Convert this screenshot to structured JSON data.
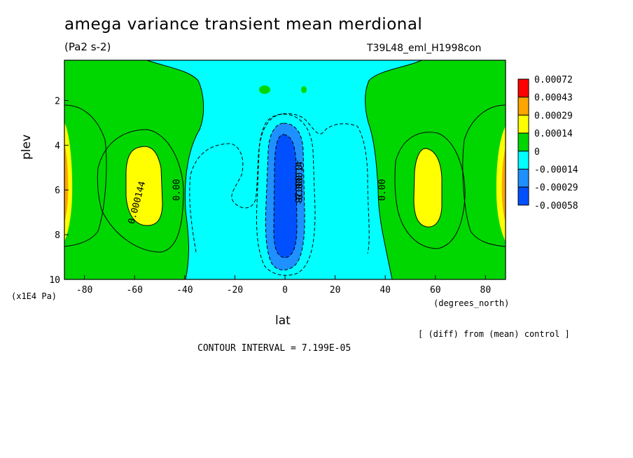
{
  "chart_data": {
    "type": "contour",
    "title": "amega variance transient mean merdional",
    "units": "(Pa2 s-2)",
    "run_label": "T39L48_eml_H1998con",
    "xlabel": "lat",
    "x_units": "(degrees_north)",
    "ylabel": "plev",
    "y_units": "(x1E4 Pa)",
    "xlim": [
      -88,
      88
    ],
    "ylim": [
      10,
      0.2
    ],
    "x_ticks": [
      -80,
      -60,
      -40,
      -20,
      0,
      20,
      40,
      60,
      80
    ],
    "x_tick_labels": [
      "-80",
      "-60",
      "-40",
      "-20",
      "0",
      "20",
      "40",
      "60",
      "80"
    ],
    "y_ticks": [
      2,
      4,
      6,
      8,
      10
    ],
    "y_tick_labels": [
      "2",
      "4",
      "6",
      "8",
      "10"
    ],
    "contour_interval_text": "CONTOUR INTERVAL = 7.199E-05",
    "diff_note": "[ (diff) from (mean) control ]",
    "contour_labels": [
      {
        "text": "0.000144",
        "lat": -58,
        "plev": 6.6,
        "angle": -75
      },
      {
        "text": "0.00",
        "lat": -42,
        "plev": 6.0,
        "angle": -90
      },
      {
        "text": "0.00",
        "lat": 40,
        "plev": 6.0,
        "angle": -90
      },
      {
        "text": "-0.00014",
        "lat": 7,
        "plev": 5.7,
        "angle": -90
      },
      {
        "text": "-0.00028",
        "lat": 4,
        "plev": 5.6,
        "angle": 90
      }
    ],
    "colorbar": {
      "labels": [
        "0.00072",
        "0.00043",
        "0.00029",
        "0.00014",
        "0",
        "-0.00014",
        "-0.00029",
        "-0.00058"
      ],
      "colors": [
        "#ff0000",
        "#ffa500",
        "#ffff00",
        "#00d700",
        "#00ffff",
        "#1e90ff",
        "#0050ff"
      ]
    },
    "fill_colors": {
      "background_positive": "#00d700",
      "near_zero_negative": "#00ffff",
      "negative_mid": "#1e90ff",
      "negative_strong": "#0050ff",
      "positive_mid": "#ffff00",
      "positive_high": "#ffa500"
    }
  }
}
